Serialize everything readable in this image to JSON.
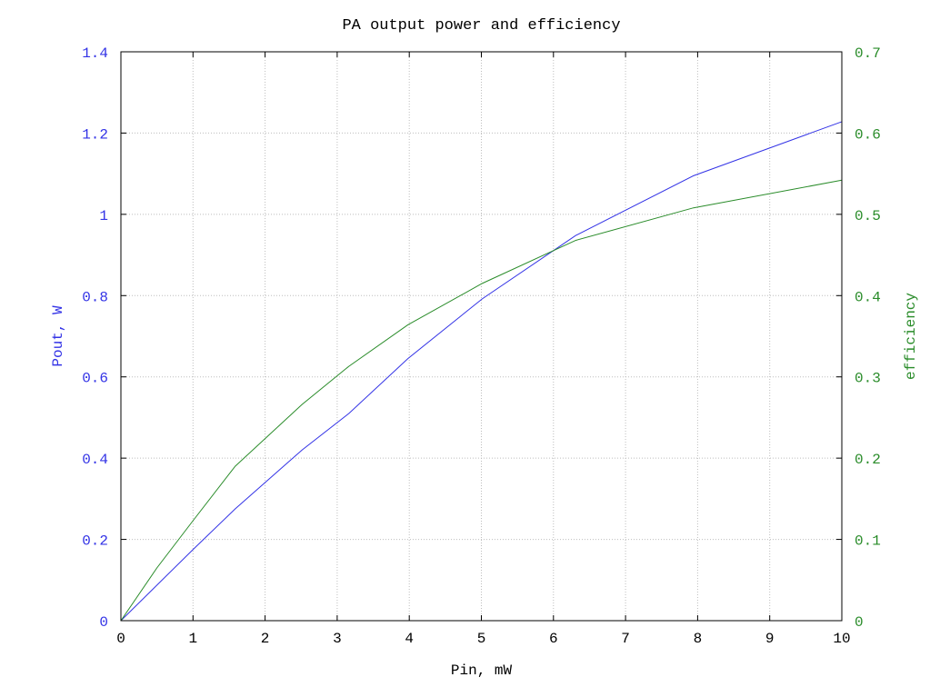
{
  "chart_data": {
    "type": "line",
    "title": "PA output power and efficiency",
    "xlabel": "Pin, mW",
    "ylabel": "Pout, W",
    "y2label": "efficiency",
    "xlim": [
      0,
      10
    ],
    "ylim": [
      0,
      1.4
    ],
    "y2lim": [
      0,
      0.7
    ],
    "grid": true,
    "legend": "none",
    "xticks": [
      "0",
      "1",
      "2",
      "3",
      "4",
      "5",
      "6",
      "7",
      "8",
      "9",
      "10"
    ],
    "yticks": [
      "0",
      "0.2",
      "0.4",
      "0.6",
      "0.8",
      "1",
      "1.2",
      "1.4"
    ],
    "y2ticks": [
      "0",
      "0.1",
      "0.2",
      "0.3",
      "0.4",
      "0.5",
      "0.6",
      "0.7"
    ],
    "colors": {
      "pout": "#3333e6",
      "efficiency": "#2a8c2a",
      "axis": "#000000",
      "grid": "#bdbdbd"
    },
    "series": [
      {
        "axis": "left",
        "x": [
          0,
          1,
          1.585,
          2.512,
          3.162,
          3.981,
          5.012,
          6.31,
          7.943,
          10
        ],
        "y": [
          0,
          0.175,
          0.275,
          0.42,
          0.51,
          0.645,
          0.792,
          0.948,
          1.095,
          1.228
        ]
      },
      {
        "axis": "right",
        "x": [
          0,
          0.5,
          1,
          1.585,
          2.512,
          3.162,
          3.981,
          5.012,
          6.31,
          7.943,
          10
        ],
        "y": [
          0,
          0.065,
          0.123,
          0.19,
          0.266,
          0.313,
          0.364,
          0.415,
          0.468,
          0.508,
          0.542
        ]
      }
    ]
  }
}
